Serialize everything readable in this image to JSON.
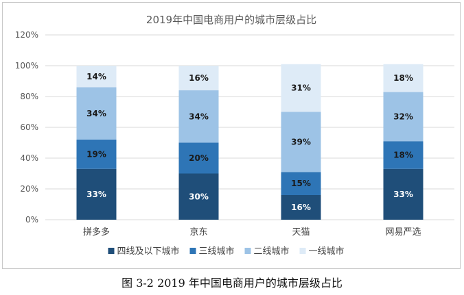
{
  "chart_data": {
    "type": "bar",
    "stacked": true,
    "title": "2019年中国电商用户的城市层级占比",
    "categories": [
      "拼多多",
      "京东",
      "天猫",
      "网易严选"
    ],
    "series": [
      {
        "name": "四线及以下城市",
        "values": [
          33,
          30,
          16,
          33
        ],
        "color": "#1f4e79",
        "label_color": "#ffffff"
      },
      {
        "name": "三线城市",
        "values": [
          19,
          20,
          15,
          18
        ],
        "color": "#2e75b6",
        "label_color": "#1a1a1a"
      },
      {
        "name": "二线城市",
        "values": [
          34,
          34,
          39,
          32
        ],
        "color": "#9dc3e6",
        "label_color": "#1a1a1a"
      },
      {
        "name": "一线城市",
        "values": [
          14,
          16,
          31,
          18
        ],
        "color": "#deebf7",
        "label_color": "#1a1a1a"
      }
    ],
    "ylim": [
      0,
      120
    ],
    "yticks": [
      0,
      20,
      40,
      60,
      80,
      100,
      120
    ],
    "ytick_suffix": "%",
    "xlabel": "",
    "ylabel": "",
    "grid": true,
    "legend": "bottom"
  },
  "caption": "图 3-2 2019 年中国电商用户的城市层级占比"
}
